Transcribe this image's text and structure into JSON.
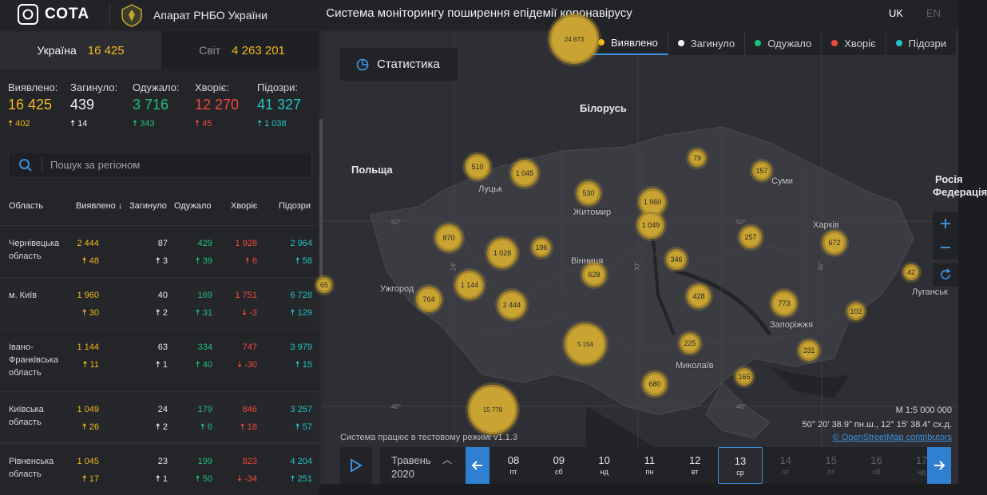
{
  "header": {
    "logo_text": "СОТА",
    "org_name": "Апарат РНБО України",
    "title": "Система моніторингу поширення епідемії коронавірусу",
    "lang_uk": "UK",
    "lang_en": "EN"
  },
  "summary_tabs": [
    {
      "label": "Україна",
      "value": "16 425"
    },
    {
      "label": "Світ",
      "value": "4 263 201"
    }
  ],
  "totals": [
    {
      "label": "Виявлено:",
      "value": "16 425",
      "delta": "402",
      "color": "#f2b71d"
    },
    {
      "label": "Загинуло:",
      "value": "439",
      "delta": "14",
      "color": "#f4f4f4"
    },
    {
      "label": "Одужало:",
      "value": "3 716",
      "delta": "343",
      "color": "#20c07a"
    },
    {
      "label": "Хворіє:",
      "value": "12 270",
      "delta": "45",
      "color": "#f04a3a"
    },
    {
      "label": "Підозри:",
      "value": "41 327",
      "delta": "1 038",
      "color": "#22c3c3"
    }
  ],
  "search": {
    "placeholder": "Пошук за регіоном"
  },
  "table": {
    "headers": [
      "Область",
      "Виявлено",
      "Загинуло",
      "Одужало",
      "Хворіє",
      "Підозри"
    ],
    "rows": [
      {
        "region": "Чернівецька область",
        "detected": "2 444",
        "detected_d": "48",
        "died": "87",
        "died_d": "3",
        "recovered": "429",
        "recovered_d": "39",
        "sick": "1 928",
        "sick_d": "6",
        "suspect": "2 964",
        "suspect_d": "58"
      },
      {
        "region": "м. Київ",
        "detected": "1 960",
        "detected_d": "30",
        "died": "40",
        "died_d": "2",
        "recovered": "169",
        "recovered_d": "31",
        "sick": "1 751",
        "sick_d": "-3",
        "suspect": "6 728",
        "suspect_d": "129"
      },
      {
        "region": "Івано-Франківська область",
        "detected": "1 144",
        "detected_d": "11",
        "died": "63",
        "died_d": "1",
        "recovered": "334",
        "recovered_d": "40",
        "sick": "747",
        "sick_d": "-30",
        "suspect": "3 979",
        "suspect_d": "15"
      },
      {
        "region": "Київська область",
        "detected": "1 049",
        "detected_d": "26",
        "died": "24",
        "died_d": "2",
        "recovered": "179",
        "recovered_d": "6",
        "sick": "846",
        "sick_d": "18",
        "suspect": "3 257",
        "suspect_d": "57"
      },
      {
        "region": "Рівненська область",
        "detected": "1 045",
        "detected_d": "17",
        "died": "23",
        "died_d": "1",
        "recovered": "199",
        "recovered_d": "50",
        "sick": "823",
        "sick_d": "-34",
        "suspect": "4 204",
        "suspect_d": "251"
      }
    ]
  },
  "map": {
    "stat_button": "Статистика",
    "legend": [
      "Виявлено",
      "Загинуло",
      "Одужало",
      "Хворіє",
      "Підозри"
    ],
    "legend_colors": [
      "#f2b71d",
      "#f4f4f4",
      "#20c07a",
      "#f04a3a",
      "#22c3c3"
    ],
    "countries": [
      "Білорусь",
      "Польща",
      "Росія",
      "Федерація"
    ],
    "cities": [
      "Луцьк",
      "Житомир",
      "Суми",
      "Харків",
      "Вінниця",
      "Ужгород",
      "Луганськ",
      "Запоріжжя",
      "Миколаїв"
    ],
    "lat_lon": [
      "50°",
      "50°",
      "24°",
      "30°",
      "36°",
      "46°",
      "46°"
    ],
    "bubbles": [
      "24 873",
      "510",
      "1 045",
      "530",
      "1 960",
      "79",
      "157",
      "1 049",
      "870",
      "1 028",
      "196",
      "257",
      "672",
      "346",
      "1 144",
      "628",
      "42",
      "764",
      "2 444",
      "428",
      "773",
      "102",
      "5 154",
      "225",
      "331",
      "165",
      "680",
      "15 778",
      "65"
    ],
    "scale": "М 1:5 000 000",
    "coords": "50° 20' 38.9\" пн.ш., 12° 15' 38.4\" сх.д.",
    "attribution": "© OpenStreetMap contributors",
    "test_note": "Система працює в тестовому режимі v1.1.3"
  },
  "timeline": {
    "month": "Травень",
    "year": "2020",
    "days": [
      {
        "d": "08",
        "w": "пт"
      },
      {
        "d": "09",
        "w": "сб"
      },
      {
        "d": "10",
        "w": "нд"
      },
      {
        "d": "11",
        "w": "пн"
      },
      {
        "d": "12",
        "w": "вт"
      },
      {
        "d": "13",
        "w": "ср"
      },
      {
        "d": "14",
        "w": "чт"
      },
      {
        "d": "15",
        "w": "пт"
      },
      {
        "d": "16",
        "w": "сб"
      },
      {
        "d": "17",
        "w": "нд"
      }
    ],
    "selected_day": "13"
  }
}
